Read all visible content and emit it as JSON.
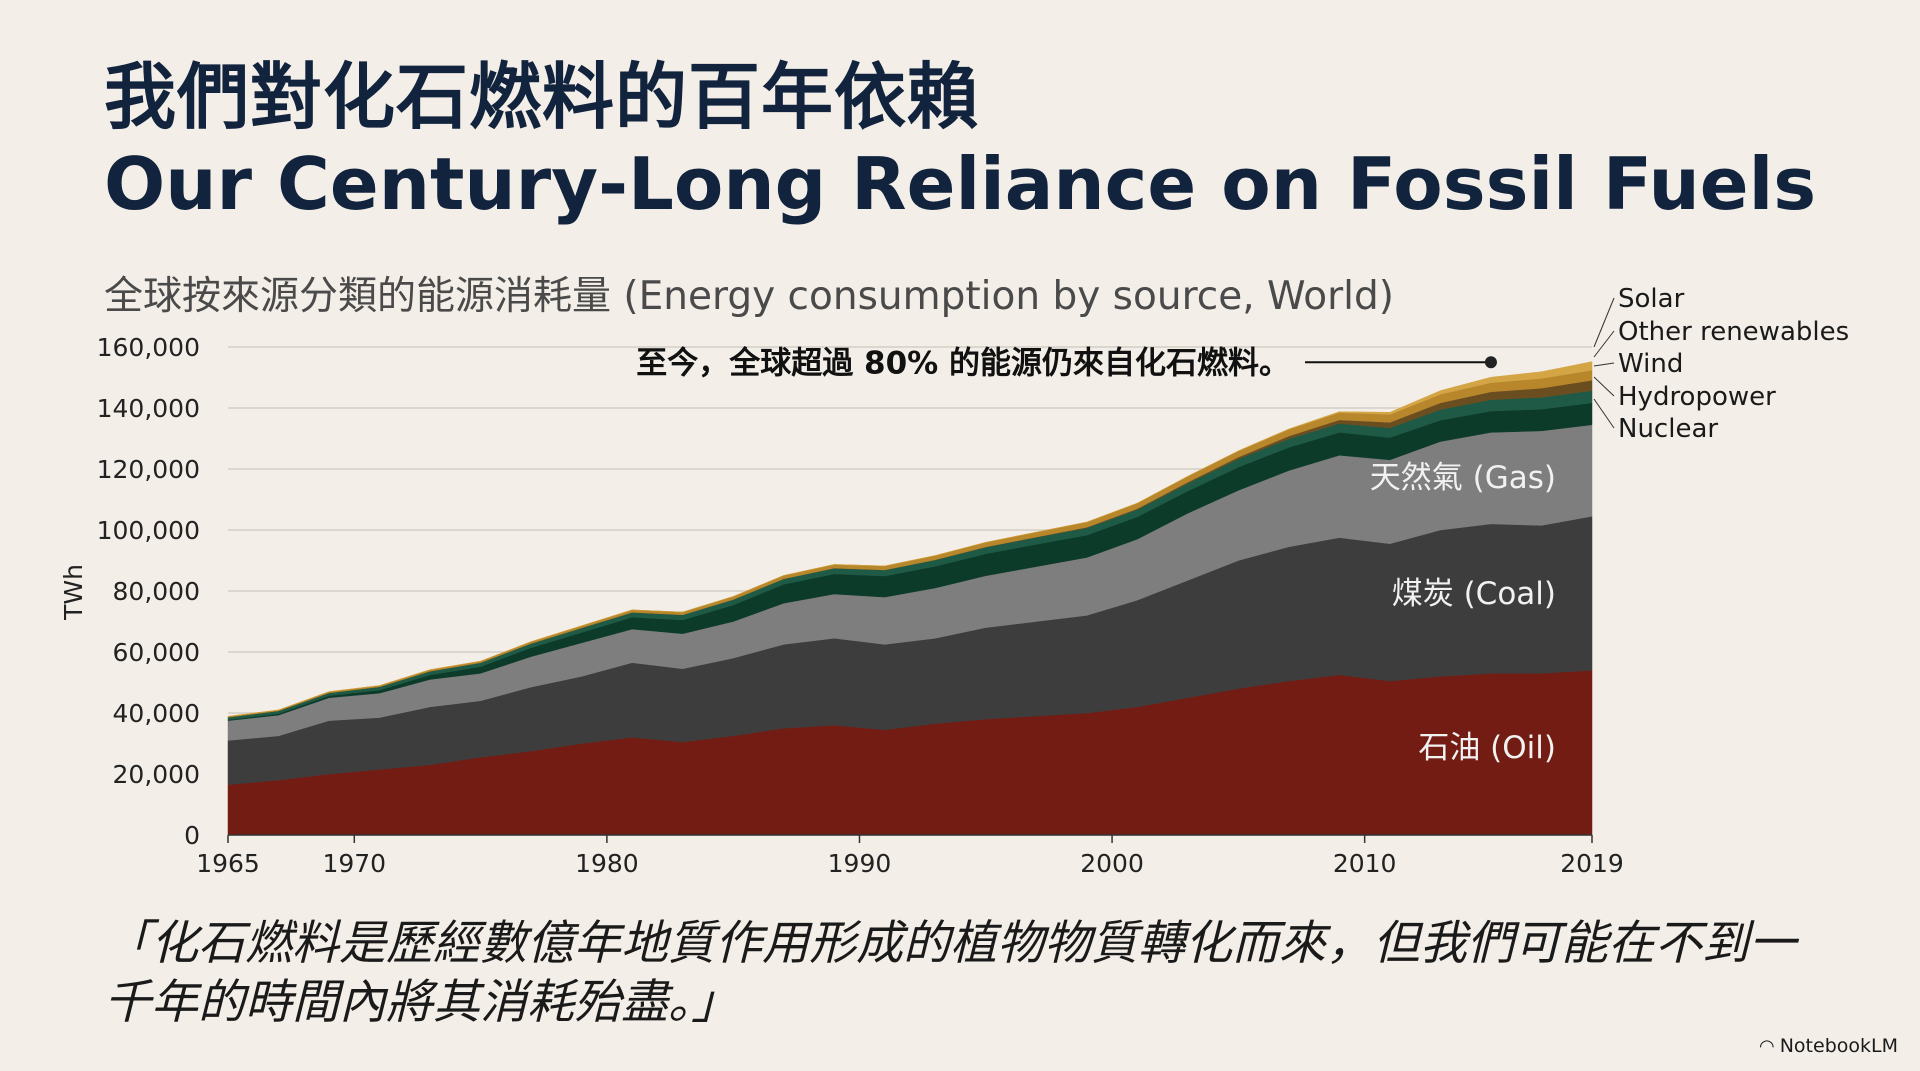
{
  "title_zh": "我們對化石燃料的百年依賴",
  "title_en": "Our Century-Long Reliance on Fossil Fuels",
  "quote": "「化石燃料是歷經數億年地質作用形成的植物物質轉化而來，但我們可能在不到一千年的時間內將其消耗殆盡。」",
  "brand": {
    "icon": "notebooklm-icon",
    "label": "NotebookLM"
  },
  "chart_data": {
    "type": "area",
    "stacked": true,
    "title": "全球按來源分類的能源消耗量 (Energy consumption by source, World)",
    "ylabel": "TWh",
    "xlabel": "",
    "xlim": [
      1965,
      2019
    ],
    "ylim": [
      0,
      160000
    ],
    "grid": true,
    "x_ticks": [
      1965,
      1970,
      1980,
      1990,
      2000,
      2010,
      2019
    ],
    "y_ticks": [
      0,
      20000,
      40000,
      60000,
      80000,
      100000,
      120000,
      140000,
      160000
    ],
    "y_tick_labels": [
      "0",
      "20,000",
      "40,000",
      "60,000",
      "80,000",
      "100,000",
      "120,000",
      "140,000",
      "160,000"
    ],
    "x": [
      1965,
      1967,
      1969,
      1971,
      1973,
      1975,
      1977,
      1979,
      1981,
      1983,
      1985,
      1987,
      1989,
      1991,
      1993,
      1995,
      1997,
      1999,
      2001,
      2003,
      2005,
      2007,
      2009,
      2011,
      2013,
      2015,
      2017,
      2019
    ],
    "series": [
      {
        "name": "石油 (Oil)",
        "color": "#731c14",
        "values": [
          16500,
          18000,
          20000,
          21500,
          23000,
          25500,
          27500,
          30000,
          32000,
          30500,
          32500,
          35000,
          36000,
          34500,
          36500,
          38000,
          39000,
          40000,
          42000,
          45000,
          48000,
          50500,
          52500,
          50500,
          52000,
          53000,
          53000,
          54000
        ]
      },
      {
        "name": "煤炭 (Coal)",
        "color": "#3d3d3d",
        "values": [
          14500,
          14500,
          17500,
          17000,
          19000,
          18500,
          21000,
          22000,
          24500,
          24000,
          25500,
          27500,
          28500,
          28000,
          28000,
          30000,
          31000,
          32000,
          35000,
          38500,
          42000,
          44000,
          45000,
          45000,
          48000,
          49000,
          48500,
          50500
        ]
      },
      {
        "name": "天然氣 (Gas)",
        "color": "#7e7e7e",
        "values": [
          6500,
          6800,
          7500,
          8000,
          9000,
          9000,
          10000,
          11000,
          11000,
          11500,
          12000,
          13500,
          14500,
          15500,
          16500,
          17000,
          18000,
          19000,
          20000,
          22000,
          23000,
          25000,
          27000,
          27500,
          29000,
          30000,
          31000,
          30000
        ]
      },
      {
        "name": "Nuclear",
        "color": "#0d3b2a",
        "values": [
          300,
          500,
          700,
          1000,
          1500,
          2200,
          2900,
          3400,
          3900,
          4500,
          5400,
          6200,
          6600,
          6900,
          7100,
          7200,
          7300,
          7300,
          7300,
          7300,
          7600,
          7600,
          7500,
          7300,
          7000,
          7000,
          7100,
          7200
        ]
      },
      {
        "name": "Hydropower",
        "color": "#1e5a46",
        "values": [
          800,
          900,
          900,
          1100,
          1200,
          1300,
          1400,
          1500,
          1600,
          1700,
          1800,
          1800,
          1900,
          2000,
          2100,
          2200,
          2300,
          2400,
          2400,
          2500,
          2700,
          2800,
          2900,
          3200,
          3500,
          3700,
          3900,
          4000
        ]
      },
      {
        "name": "Wind",
        "color": "#6b4e20",
        "values": [
          0,
          0,
          0,
          0,
          0,
          0,
          0,
          0,
          0,
          0,
          0,
          0,
          0,
          10,
          30,
          60,
          100,
          200,
          300,
          400,
          600,
          900,
          1200,
          1800,
          2200,
          2600,
          3000,
          3400
        ]
      },
      {
        "name": "Other renewables",
        "color": "#b8862b",
        "values": [
          300,
          300,
          400,
          400,
          500,
          500,
          600,
          700,
          800,
          900,
          1000,
          1100,
          1200,
          1300,
          1400,
          1500,
          1600,
          1700,
          1800,
          1900,
          2000,
          2200,
          2400,
          2600,
          2800,
          3000,
          3200,
          3300
        ]
      },
      {
        "name": "Solar",
        "color": "#d4a545",
        "values": [
          0,
          0,
          0,
          0,
          0,
          0,
          0,
          0,
          0,
          0,
          0,
          0,
          0,
          0,
          0,
          0,
          5,
          10,
          20,
          50,
          80,
          150,
          300,
          700,
          1200,
          1800,
          2200,
          2800
        ]
      }
    ],
    "inline_labels": [
      "天然氣 (Gas)",
      "煤炭 (Coal)",
      "石油 (Oil)"
    ],
    "right_legend": [
      "Solar",
      "Other renewables",
      "Wind",
      "Hydropower",
      "Nuclear"
    ],
    "annotation": {
      "text": "至今，全球超過 80% 的能源仍來自化石燃料。",
      "x": 2015,
      "y": 155000
    }
  }
}
